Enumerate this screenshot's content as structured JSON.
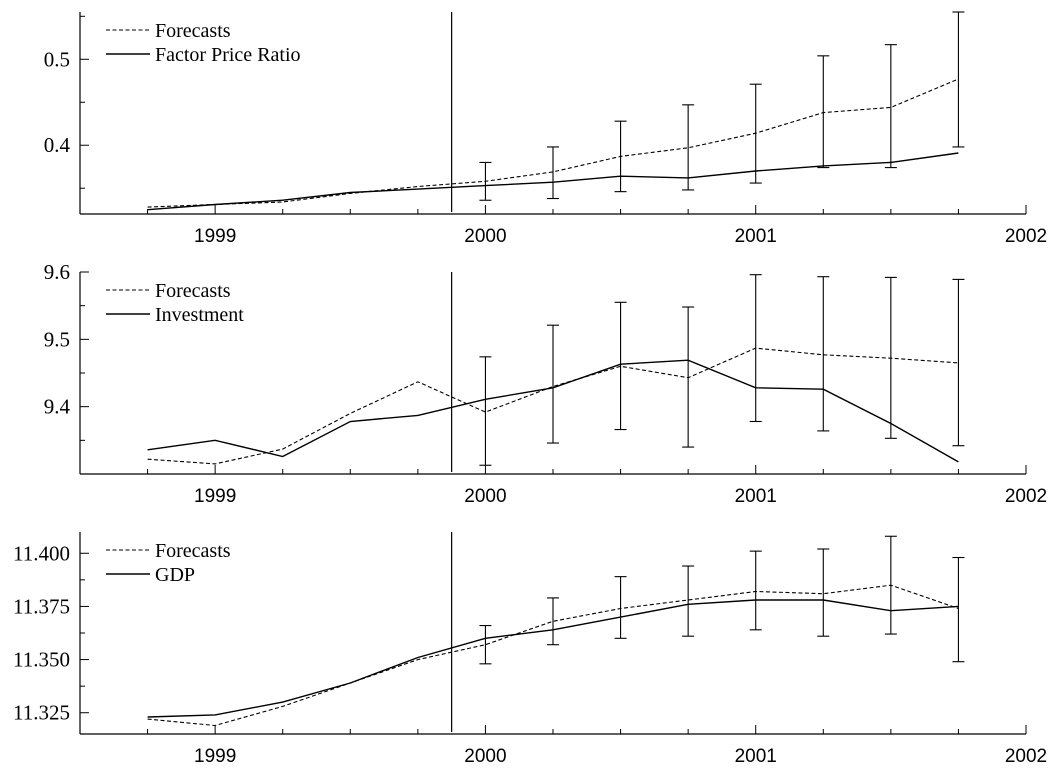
{
  "chart_data": [
    {
      "type": "line",
      "x_tick_labels": [
        "1999",
        "2000",
        "2001",
        "2002"
      ],
      "x_ticks": [
        1999,
        2000,
        2001,
        2002
      ],
      "xlim": [
        1998.5,
        2002
      ],
      "ylim": [
        0.32,
        0.555
      ],
      "y_ticks": [
        0.4,
        0.5
      ],
      "y_tick_labels": [
        "0.4",
        "0.5"
      ],
      "forecast_start": 1999.875,
      "legend": {
        "position": "top-left",
        "entries": [
          "Forecasts",
          "Factor Price Ratio"
        ]
      },
      "series": [
        {
          "name": "Forecasts",
          "style": "dashed",
          "x": [
            1998.75,
            1999.0,
            1999.25,
            1999.5,
            1999.75,
            2000.0,
            2000.25,
            2000.5,
            2000.75,
            2001.0,
            2001.25,
            2001.5,
            2001.75
          ],
          "values": [
            0.328,
            0.331,
            0.334,
            0.344,
            0.352,
            0.358,
            0.369,
            0.387,
            0.397,
            0.414,
            0.438,
            0.444,
            0.477
          ]
        },
        {
          "name": "Factor Price Ratio",
          "style": "solid",
          "x": [
            1998.75,
            1999.0,
            1999.25,
            1999.5,
            1999.75,
            2000.0,
            2000.25,
            2000.5,
            2000.75,
            2001.0,
            2001.25,
            2001.5,
            2001.75
          ],
          "values": [
            0.325,
            0.331,
            0.336,
            0.345,
            0.349,
            0.353,
            0.357,
            0.364,
            0.362,
            0.37,
            0.376,
            0.38,
            0.391
          ]
        }
      ],
      "error_bars": {
        "x": [
          2000.0,
          2000.25,
          2000.5,
          2000.75,
          2001.0,
          2001.25,
          2001.5,
          2001.75
        ],
        "low": [
          0.336,
          0.338,
          0.346,
          0.348,
          0.356,
          0.374,
          0.374,
          0.398
        ],
        "high": [
          0.38,
          0.398,
          0.428,
          0.447,
          0.471,
          0.504,
          0.517,
          0.555
        ]
      }
    },
    {
      "type": "line",
      "x_tick_labels": [
        "1999",
        "2000",
        "2001",
        "2002"
      ],
      "x_ticks": [
        1999,
        2000,
        2001,
        2002
      ],
      "xlim": [
        1998.5,
        2002
      ],
      "ylim": [
        9.3,
        9.6
      ],
      "y_ticks": [
        9.4,
        9.5,
        9.6
      ],
      "y_tick_labels": [
        "9.4",
        "9.5",
        "9.6"
      ],
      "forecast_start": 1999.875,
      "legend": {
        "position": "top-left",
        "entries": [
          "Forecasts",
          "Investment"
        ]
      },
      "series": [
        {
          "name": "Forecasts",
          "style": "dashed",
          "x": [
            1998.75,
            1999.0,
            1999.25,
            1999.5,
            1999.75,
            2000.0,
            2000.25,
            2000.5,
            2000.75,
            2001.0,
            2001.25,
            2001.5,
            2001.75
          ],
          "values": [
            9.322,
            9.315,
            9.337,
            9.39,
            9.437,
            9.392,
            9.43,
            9.46,
            9.443,
            9.487,
            9.477,
            9.472,
            9.465
          ]
        },
        {
          "name": "Investment",
          "style": "solid",
          "x": [
            1998.75,
            1999.0,
            1999.25,
            1999.5,
            1999.75,
            2000.0,
            2000.25,
            2000.5,
            2000.75,
            2001.0,
            2001.25,
            2001.5,
            2001.75
          ],
          "values": [
            9.336,
            9.35,
            9.326,
            9.378,
            9.387,
            9.411,
            9.428,
            9.463,
            9.469,
            9.428,
            9.426,
            9.375,
            9.318
          ]
        }
      ],
      "error_bars": {
        "x": [
          2000.0,
          2000.25,
          2000.5,
          2000.75,
          2001.0,
          2001.25,
          2001.5,
          2001.75
        ],
        "low": [
          9.313,
          9.346,
          9.366,
          9.34,
          9.378,
          9.364,
          9.353,
          9.342
        ],
        "high": [
          9.474,
          9.521,
          9.555,
          9.548,
          9.596,
          9.593,
          9.592,
          9.589
        ]
      }
    },
    {
      "type": "line",
      "x_tick_labels": [
        "1999",
        "2000",
        "2001",
        "2002"
      ],
      "x_ticks": [
        1999,
        2000,
        2001,
        2002
      ],
      "xlim": [
        1998.5,
        2002
      ],
      "ylim": [
        11.315,
        11.41
      ],
      "y_ticks": [
        11.325,
        11.35,
        11.375,
        11.4
      ],
      "y_tick_labels": [
        "11.325",
        "11.350",
        "11.375",
        "11.400"
      ],
      "forecast_start": 1999.875,
      "legend": {
        "position": "top-left",
        "entries": [
          "Forecasts",
          "GDP"
        ]
      },
      "series": [
        {
          "name": "Forecasts",
          "style": "dashed",
          "x": [
            1998.75,
            1999.0,
            1999.25,
            1999.5,
            1999.75,
            2000.0,
            2000.25,
            2000.5,
            2000.75,
            2001.0,
            2001.25,
            2001.5,
            2001.75
          ],
          "values": [
            11.322,
            11.319,
            11.328,
            11.339,
            11.35,
            11.357,
            11.368,
            11.374,
            11.378,
            11.382,
            11.381,
            11.385,
            11.374
          ]
        },
        {
          "name": "GDP",
          "style": "solid",
          "x": [
            1998.75,
            1999.0,
            1999.25,
            1999.5,
            1999.75,
            2000.0,
            2000.25,
            2000.5,
            2000.75,
            2001.0,
            2001.25,
            2001.5,
            2001.75
          ],
          "values": [
            11.323,
            11.324,
            11.33,
            11.339,
            11.351,
            11.36,
            11.364,
            11.37,
            11.376,
            11.378,
            11.378,
            11.373,
            11.375
          ]
        }
      ],
      "error_bars": {
        "x": [
          2000.0,
          2000.25,
          2000.5,
          2000.75,
          2001.0,
          2001.25,
          2001.5,
          2001.75
        ],
        "low": [
          11.348,
          11.357,
          11.36,
          11.361,
          11.364,
          11.361,
          11.362,
          11.349
        ],
        "high": [
          11.366,
          11.379,
          11.389,
          11.394,
          11.401,
          11.402,
          11.408,
          11.398
        ]
      }
    }
  ]
}
